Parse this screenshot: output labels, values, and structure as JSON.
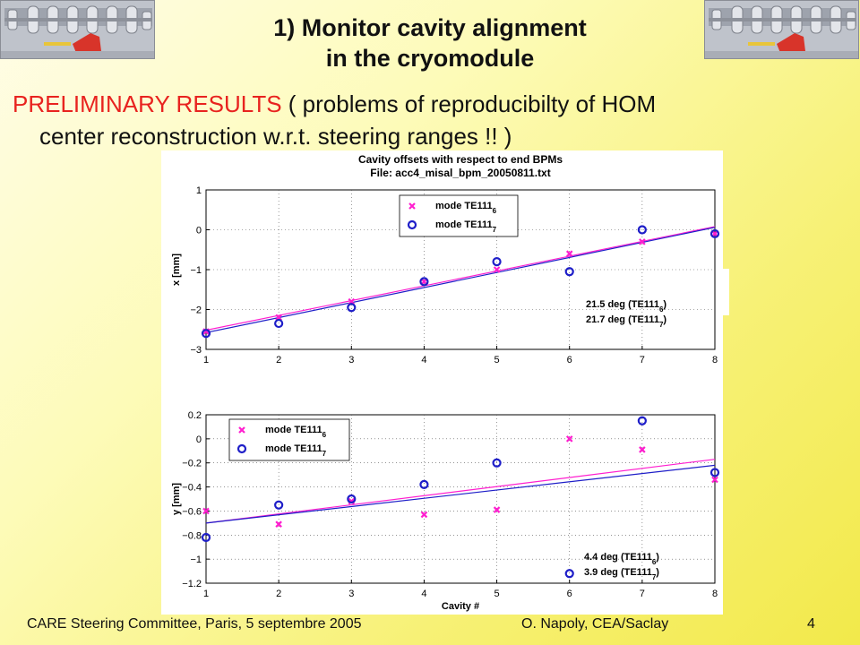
{
  "slide": {
    "title_line1": "1) Monitor cavity alignment",
    "title_line2": "in the cryomodule",
    "subtitle_red": "PRELIMINARY RESULTS",
    "subtitle_rest": " ( problems of reproducibilty of HOM",
    "subtitle_line2": "center reconstruction w.r.t. steering ranges !! )"
  },
  "footer": {
    "left": "CARE Steering Committee, Paris, 5 septembre 2005",
    "middle": "O. Napoly, CEA/Saclay",
    "page": "4"
  },
  "colors": {
    "magenta": "#ff1ecf",
    "blue": "#1e1ec8",
    "red_text": "#e8231f"
  },
  "chart_data": [
    {
      "type": "scatter",
      "title": [
        "Cavity offsets with respect to end BPMs",
        "File: acc4_misal_bpm_20050811.txt"
      ],
      "xlabel": "",
      "ylabel": "x [mm]",
      "xlim": [
        1,
        8
      ],
      "ylim": [
        -3,
        1
      ],
      "x_ticks": [
        "1",
        "2",
        "3",
        "4",
        "5",
        "6",
        "7",
        "8"
      ],
      "y_ticks": [
        "1",
        "0",
        "−1",
        "−2",
        "−3"
      ],
      "grid": true,
      "legend": [
        {
          "main": "mode TE111",
          "sub": "6"
        },
        {
          "main": "mode TE111",
          "sub": "7"
        }
      ],
      "annotations": [
        {
          "main": "21.5 deg (TE111",
          "sub": "6",
          "end": ")"
        },
        {
          "main": "21.7 deg (TE111",
          "sub": "7",
          "end": ")"
        }
      ],
      "series": [
        {
          "marker": "x",
          "x": [
            1,
            2,
            3,
            4,
            5,
            6,
            7,
            8
          ],
          "y": [
            -2.55,
            -2.2,
            -1.8,
            -1.3,
            -1.0,
            -0.6,
            -0.3,
            -0.1
          ]
        },
        {
          "marker": "o",
          "x": [
            1,
            2,
            3,
            4,
            5,
            6,
            7,
            8
          ],
          "y": [
            -2.6,
            -2.35,
            -1.95,
            -1.3,
            -0.8,
            -1.05,
            0.0,
            -0.1
          ]
        }
      ],
      "fits": [
        {
          "y_start": -2.52,
          "y_end": 0.08
        },
        {
          "y_start": -2.58,
          "y_end": 0.06
        }
      ]
    },
    {
      "type": "scatter",
      "title": "",
      "xlabel": "Cavity #",
      "ylabel": "y [mm]",
      "xlim": [
        1,
        8
      ],
      "ylim": [
        -1.2,
        0.2
      ],
      "x_ticks": [
        "1",
        "2",
        "3",
        "4",
        "5",
        "6",
        "7",
        "8"
      ],
      "y_ticks": [
        "0.2",
        "0",
        "−0.2",
        "−0.4",
        "−0.6",
        "−0.8",
        "−1",
        "−1.2"
      ],
      "grid": true,
      "legend": [
        {
          "main": "mode TE111",
          "sub": "6"
        },
        {
          "main": "mode TE111",
          "sub": "7"
        }
      ],
      "annotations": [
        {
          "main": "4.4 deg (TE111",
          "sub": "6",
          "end": ")"
        },
        {
          "main": "3.9 deg (TE111",
          "sub": "7",
          "end": ")"
        }
      ],
      "series": [
        {
          "marker": "x",
          "x": [
            1,
            2,
            3,
            4,
            5,
            6,
            7,
            8
          ],
          "y": [
            -0.6,
            -0.71,
            -0.52,
            -0.63,
            -0.59,
            0.0,
            -0.09,
            -0.34
          ]
        },
        {
          "marker": "o",
          "x": [
            1,
            2,
            3,
            4,
            5,
            6,
            7,
            8
          ],
          "y": [
            -0.82,
            -0.55,
            -0.5,
            -0.38,
            -0.2,
            -1.12,
            0.15,
            -0.28
          ]
        }
      ],
      "fits": [
        {
          "y_start": -0.7,
          "y_end": -0.17
        },
        {
          "y_start": -0.7,
          "y_end": -0.22
        }
      ]
    }
  ]
}
